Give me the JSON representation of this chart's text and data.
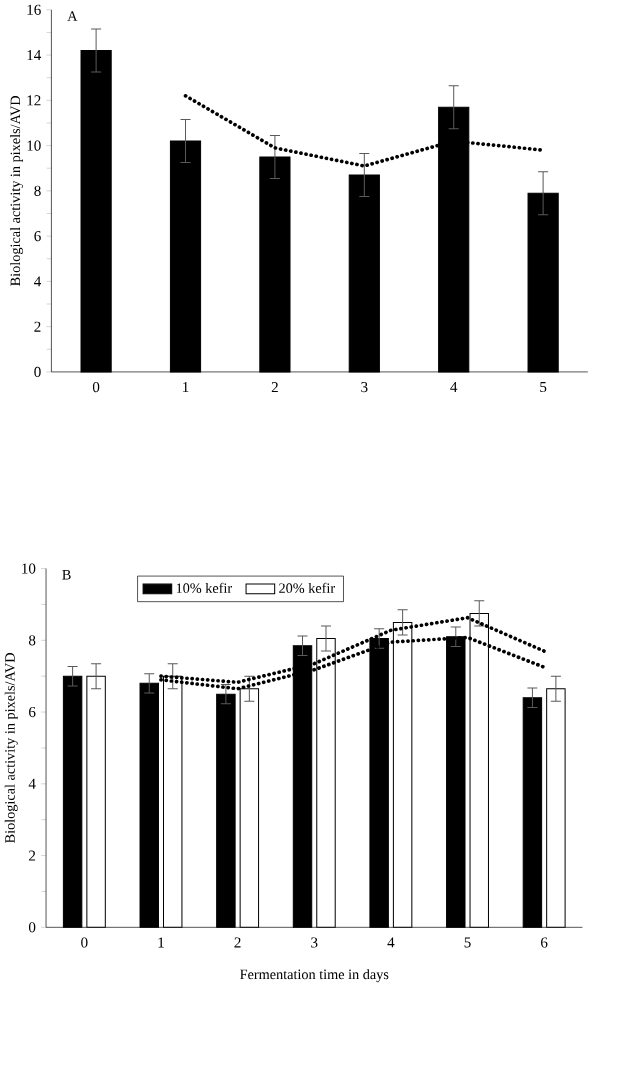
{
  "chart_data": [
    {
      "type": "bar",
      "title": "A",
      "ylabel": "Biological activity in pixels/AVD",
      "categories": [
        "0",
        "1",
        "2",
        "3",
        "4",
        "5"
      ],
      "ylim": [
        0,
        16
      ],
      "yticks": [
        0,
        2,
        4,
        6,
        8,
        10,
        12,
        14,
        16
      ],
      "legend": false,
      "series": [
        {
          "color": "#000000",
          "values": [
            14.2,
            10.2,
            9.5,
            8.7,
            11.7,
            7.9
          ],
          "errors": [
            0.95,
            0.95,
            0.95,
            0.95,
            0.95,
            0.95
          ]
        },
        {
          "type": "line",
          "color": "#000000",
          "line_style": "dotted",
          "values": [
            null,
            12.2,
            9.9,
            9.1,
            10.2,
            9.8
          ]
        }
      ]
    },
    {
      "type": "bar",
      "title": "B",
      "xlabel": "Fermentation time in days",
      "ylabel": "Biological activity in pixels/AVD",
      "categories": [
        "0",
        "1",
        "2",
        "3",
        "4",
        "5",
        "6"
      ],
      "ylim": [
        0,
        10
      ],
      "yticks": [
        0,
        2,
        4,
        6,
        8,
        10
      ],
      "legend": "top left",
      "series": [
        {
          "name": "10% kefir",
          "color": "#000000",
          "values": [
            7.0,
            6.8,
            6.5,
            7.85,
            8.05,
            8.1,
            6.4
          ],
          "errors": [
            0.27,
            0.27,
            0.27,
            0.27,
            0.27,
            0.27,
            0.27
          ]
        },
        {
          "name": "20% kefir",
          "color": "#ffffff",
          "values": [
            7.0,
            7.0,
            6.65,
            8.05,
            8.5,
            8.75,
            6.65
          ],
          "errors": [
            0.35,
            0.35,
            0.35,
            0.35,
            0.35,
            0.35,
            0.35
          ]
        },
        {
          "type": "line",
          "color": "#000000",
          "line_style": "dotted",
          "values": [
            null,
            6.9,
            6.65,
            7.18,
            7.95,
            8.08,
            7.25
          ]
        },
        {
          "type": "line",
          "color": "#000000",
          "line_style": "dotted",
          "values": [
            null,
            7.0,
            6.83,
            7.35,
            8.28,
            8.63,
            7.7
          ]
        }
      ]
    }
  ]
}
